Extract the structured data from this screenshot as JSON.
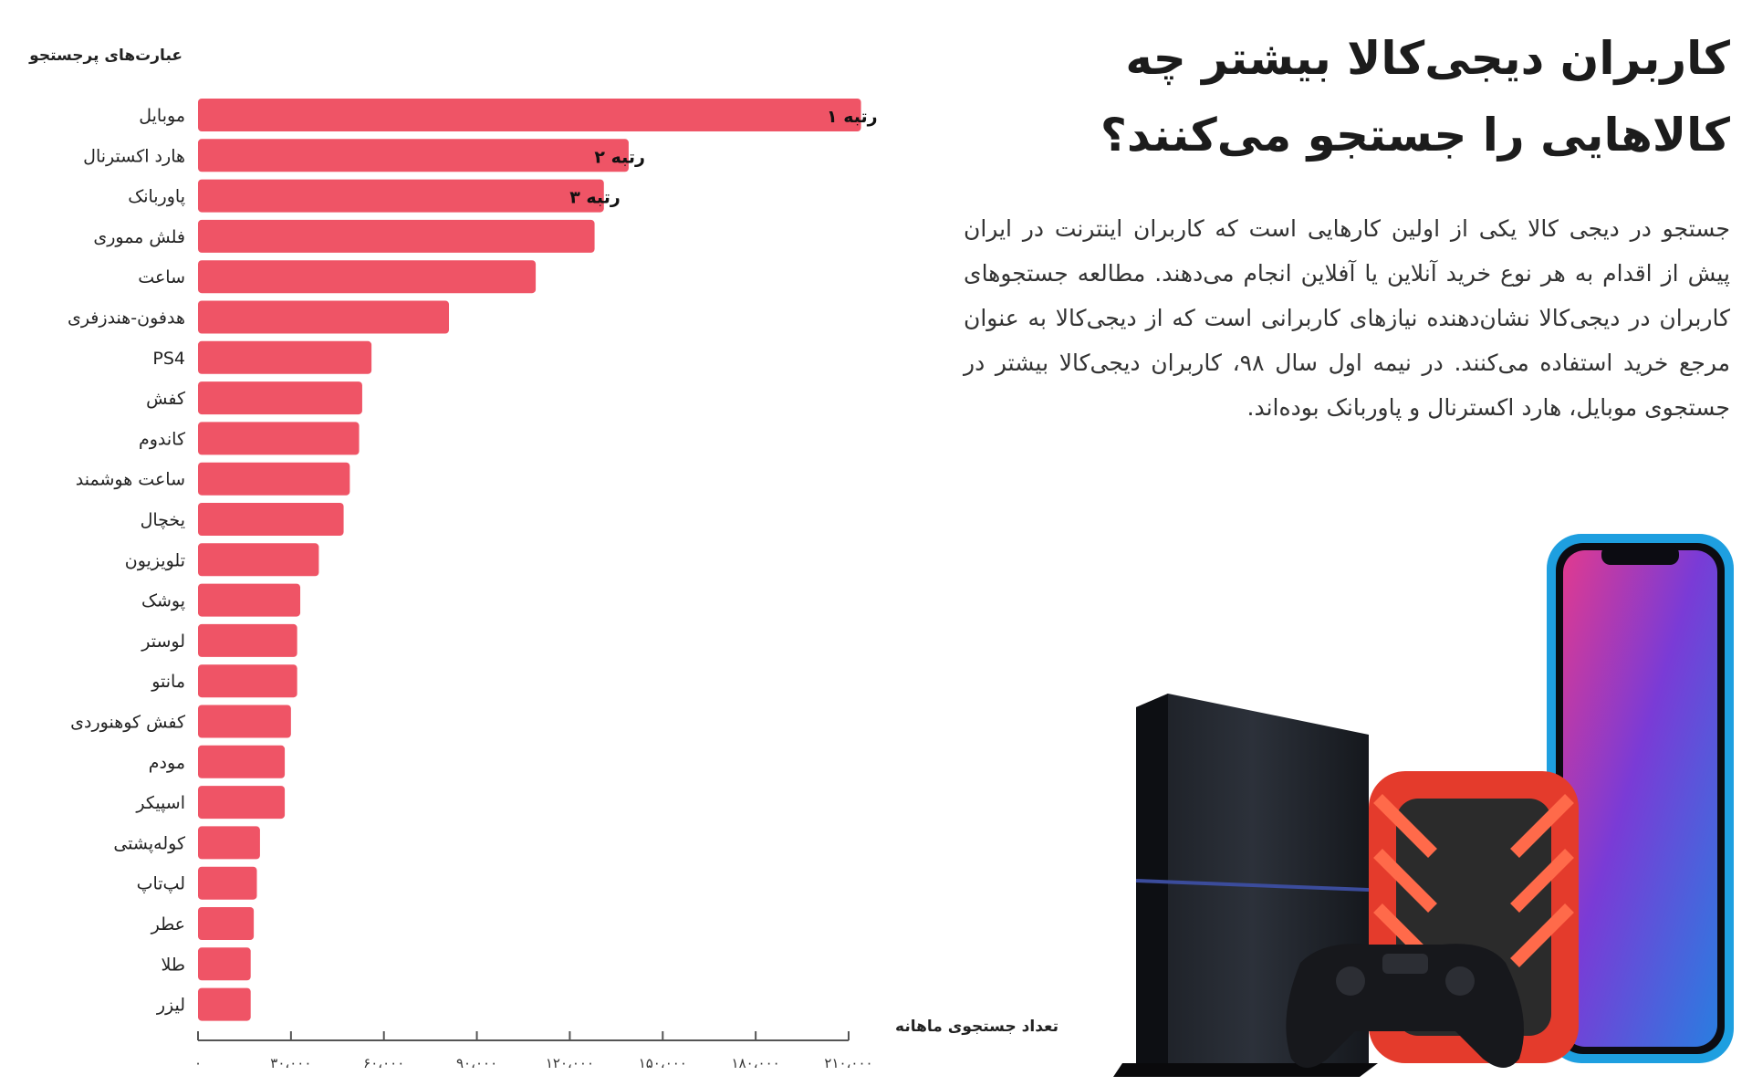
{
  "article": {
    "title_line1": "کاربران دیجی‌کالا بیشتر چه",
    "title_line2": "کالاهایی را جستجو می‌کنند؟",
    "body": "جستجو در دیجی کالا یکی از اولین کارهایی است که کاربران اینترنت در ایران پیش از اقدام به هر نوع خرید آنلاین یا آفلاین انجام می‌دهند. مطالعه جستجوهای کاربران در دیجی‌کالا نشان‌دهنده نیازهای کاربرانی است که از دیجی‌کالا به عنوان مرجع خرید استفاده می‌کنند. در نیمه اول سال ۹۸، کاربران دیجی‌کالا بیشتر در جستجوی موبایل، هارد اکسترنال و پاوربانک بوده‌اند."
  },
  "colors": {
    "bar": "#ef5466",
    "axis": "#555555",
    "text": "#222222"
  },
  "icons": [
    "ps4-console-image",
    "external-hard-drive-image",
    "game-controller-image",
    "smartphone-image"
  ],
  "chart_data": {
    "type": "bar",
    "orientation": "horizontal",
    "ylabel": "عبارت‌های پرجستجو",
    "xlabel": "تعداد جستجوی ماهانه",
    "xlim": [
      0,
      210000
    ],
    "xticks": [
      0,
      30000,
      60000,
      90000,
      120000,
      150000,
      180000,
      210000
    ],
    "xtick_labels": [
      "۰",
      "۳۰،۰۰۰",
      "۶۰،۰۰۰",
      "۹۰،۰۰۰",
      "۱۲۰،۰۰۰",
      "۱۵۰،۰۰۰",
      "۱۸۰،۰۰۰",
      "۲۱۰،۰۰۰"
    ],
    "categories": [
      "موبایل",
      "هارد اکسترنال",
      "پاوربانک",
      "فلش مموری",
      "ساعت",
      "هدفون-هندزفری",
      "PS4",
      "کفش",
      "کاندوم",
      "ساعت هوشمند",
      "یخچال",
      "تلویزیون",
      "پوشک",
      "لوستر",
      "مانتو",
      "کفش کوهنوردی",
      "مودم",
      "اسپیکر",
      "کوله‌پشتی",
      "لپ‌تاپ",
      "عطر",
      "طلا",
      "لیزر"
    ],
    "values": [
      214000,
      139000,
      131000,
      128000,
      109000,
      81000,
      56000,
      53000,
      52000,
      49000,
      47000,
      39000,
      33000,
      32000,
      32000,
      30000,
      28000,
      28000,
      20000,
      19000,
      18000,
      17000,
      17000
    ],
    "annotations": [
      {
        "index": 0,
        "text": "رتبه ۱"
      },
      {
        "index": 1,
        "text": "رتبه ۲"
      },
      {
        "index": 2,
        "text": "رتبه ۳"
      }
    ]
  }
}
